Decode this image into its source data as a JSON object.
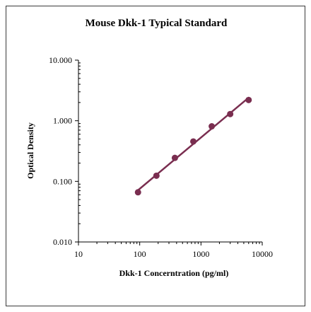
{
  "chart_data": {
    "type": "scatter",
    "title": "Mouse Dkk-1 Typical Standard",
    "xlabel": "Dkk-1 Concerntration (pg/ml)",
    "ylabel": "Optical Density",
    "x_scale": "log",
    "y_scale": "log",
    "xlim": [
      10,
      10000
    ],
    "ylim": [
      0.01,
      10
    ],
    "x_ticks": [
      "10",
      "100",
      "1000",
      "10000"
    ],
    "y_ticks": [
      "0.010",
      "0.100",
      "1.000",
      "10.000"
    ],
    "grid": false,
    "legend": "none",
    "series": [
      {
        "color": "#7a2e50",
        "x": [
          93.75,
          187.5,
          375,
          750,
          1500,
          3000,
          6000
        ],
        "y": [
          0.066,
          0.124,
          0.244,
          0.455,
          0.81,
          1.29,
          2.2
        ],
        "fit_line": true
      }
    ]
  }
}
